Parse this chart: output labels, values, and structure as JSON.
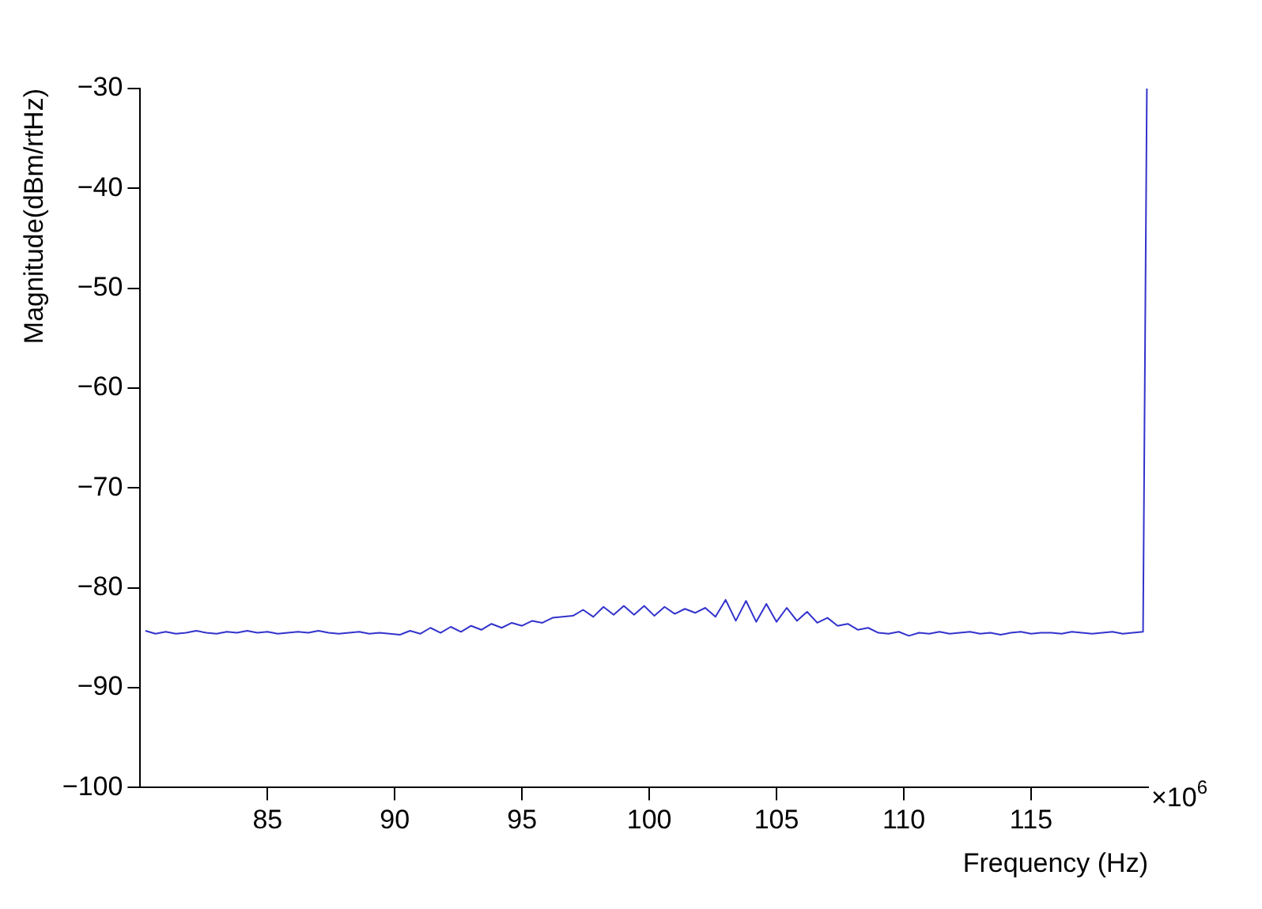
{
  "chart_data": {
    "type": "line",
    "xlabel": "Frequency (Hz)",
    "ylabel": "Magnitude(dBm/rtHz)",
    "annotations": [
      "×10$^{6}$"
    ],
    "x": [
      80.2,
      80.6,
      81.0,
      81.4,
      81.8,
      82.2,
      82.6,
      83.0,
      83.4,
      83.8,
      84.2,
      84.6,
      85.0,
      85.4,
      85.8,
      86.2,
      86.6,
      87.0,
      87.4,
      87.8,
      88.2,
      88.6,
      89.0,
      89.4,
      89.8,
      90.2,
      90.6,
      91.0,
      91.4,
      91.8,
      92.2,
      92.6,
      93.0,
      93.4,
      93.8,
      94.2,
      94.6,
      95.0,
      95.4,
      95.8,
      96.2,
      96.6,
      97.0,
      97.4,
      97.8,
      98.2,
      98.6,
      99.0,
      99.4,
      99.8,
      100.2,
      100.6,
      101.0,
      101.4,
      101.8,
      102.2,
      102.6,
      103.0,
      103.4,
      103.8,
      104.2,
      104.6,
      105.0,
      105.4,
      105.8,
      106.2,
      106.6,
      107.0,
      107.4,
      107.8,
      108.2,
      108.6,
      109.0,
      109.4,
      109.8,
      110.2,
      110.6,
      111.0,
      111.4,
      111.8,
      112.2,
      112.6,
      113.0,
      113.4,
      113.8,
      114.2,
      114.6,
      115.0,
      115.4,
      115.8,
      116.2,
      116.6,
      117.0,
      117.4,
      117.8,
      118.2,
      118.6,
      119.0,
      119.4,
      119.55
    ],
    "series": [
      {
        "color": "#3333cc",
        "values": [
          -84.3,
          -84.6,
          -84.4,
          -84.6,
          -84.5,
          -84.3,
          -84.5,
          -84.6,
          -84.4,
          -84.5,
          -84.3,
          -84.5,
          -84.4,
          -84.6,
          -84.5,
          -84.4,
          -84.5,
          -84.3,
          -84.5,
          -84.6,
          -84.5,
          -84.4,
          -84.6,
          -84.5,
          -84.6,
          -84.7,
          -84.3,
          -84.6,
          -84.0,
          -84.5,
          -83.9,
          -84.4,
          -83.8,
          -84.2,
          -83.6,
          -84.0,
          -83.5,
          -83.8,
          -83.3,
          -83.5,
          -83.0,
          -82.9,
          -82.8,
          -82.2,
          -82.9,
          -81.9,
          -82.7,
          -81.8,
          -82.7,
          -81.8,
          -82.8,
          -81.9,
          -82.6,
          -82.1,
          -82.5,
          -82.0,
          -82.9,
          -81.2,
          -83.3,
          -81.3,
          -83.4,
          -81.6,
          -83.4,
          -82.0,
          -83.3,
          -82.4,
          -83.5,
          -83.0,
          -83.8,
          -83.6,
          -84.2,
          -84.0,
          -84.5,
          -84.6,
          -84.4,
          -84.8,
          -84.5,
          -84.6,
          -84.4,
          -84.6,
          -84.5,
          -84.4,
          -84.6,
          -84.5,
          -84.7,
          -84.5,
          -84.4,
          -84.6,
          -84.5,
          -84.5,
          -84.6,
          -84.4,
          -84.5,
          -84.6,
          -84.5,
          -84.4,
          -84.6,
          -84.5,
          -84.4,
          -30
        ]
      }
    ],
    "xlim": [
      80,
      119.6
    ],
    "xticks": [
      85,
      90,
      95,
      100,
      105,
      110,
      115
    ],
    "ylim": [
      -100,
      -30
    ],
    "yticks": [
      {
        "value": -100,
        "label": "−100"
      },
      {
        "value": -90,
        "label": "−90"
      },
      {
        "value": -80,
        "label": "−80"
      },
      {
        "value": -70,
        "label": "−70"
      },
      {
        "value": -60,
        "label": "−60"
      },
      {
        "value": -50,
        "label": "−50"
      },
      {
        "value": -40,
        "label": "−40"
      },
      {
        "value": -30,
        "label": "−30"
      }
    ],
    "grid": false,
    "legend": false,
    "marker": "none",
    "line_style": "solid"
  }
}
